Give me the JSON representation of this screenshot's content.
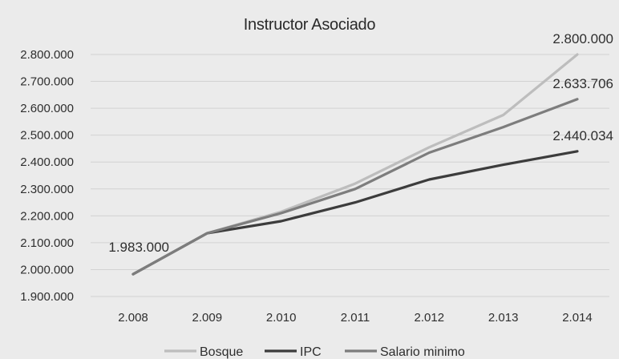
{
  "chart_data": {
    "type": "line",
    "title": "Instructor Asociado",
    "xlabel": "",
    "ylabel": "",
    "categories": [
      "2.008",
      "2.009",
      "2.010",
      "2.011",
      "2.012",
      "2.013",
      "2.014"
    ],
    "ylim": [
      1900000,
      2800000
    ],
    "yticks": [
      1900000,
      2000000,
      2100000,
      2200000,
      2300000,
      2400000,
      2500000,
      2600000,
      2700000,
      2800000
    ],
    "ytick_labels": [
      "1.900.000",
      "2.000.000",
      "2.100.000",
      "2.200.000",
      "2.300.000",
      "2.400.000",
      "2.500.000",
      "2.600.000",
      "2.700.000",
      "2.800.000"
    ],
    "grid": true,
    "legend_position": "bottom",
    "series": [
      {
        "name": "Bosque",
        "color": "#bdbdbd",
        "values": [
          1983000,
          2135000,
          2215000,
          2320000,
          2455000,
          2575000,
          2800000
        ]
      },
      {
        "name": "IPC",
        "color": "#3c3c3c",
        "values": [
          1983000,
          2135000,
          2180000,
          2250000,
          2335000,
          2390000,
          2440034
        ]
      },
      {
        "name": "Salario minimo",
        "color": "#7d7d7d",
        "values": [
          1983000,
          2135000,
          2210000,
          2300000,
          2435000,
          2530000,
          2633706
        ]
      }
    ],
    "annotations": [
      {
        "text": "1.983.000",
        "series": 1,
        "index": 0,
        "anchor": "above-left"
      },
      {
        "text": "2.800.000",
        "series": 0,
        "index": 6,
        "anchor": "above"
      },
      {
        "text": "2.633.706",
        "series": 2,
        "index": 6,
        "anchor": "above"
      },
      {
        "text": "2.440.034",
        "series": 1,
        "index": 6,
        "anchor": "above"
      }
    ]
  }
}
